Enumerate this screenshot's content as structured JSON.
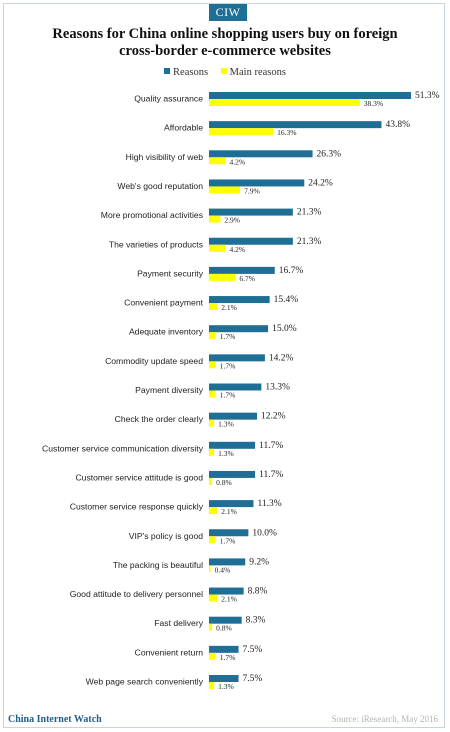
{
  "badge": "CIW",
  "title_line1": "Reasons for China online shopping users buy on foreign",
  "title_line2": "cross-border e-commerce websites",
  "footer_left": "China Internet Watch",
  "footer_right": "Source: iResearch, May 2016",
  "colors": {
    "reasons": "#1f6e95",
    "main_reasons": "#ffff00"
  },
  "chart_data": {
    "type": "bar",
    "orientation": "horizontal",
    "title": "Reasons for China online shopping users buy on foreign cross-border e-commerce websites",
    "legend_position": "top-center",
    "categories": [
      "Quality assurance",
      "Affordable",
      "High visibility of web",
      "Web's good reputation",
      "More promotional activities",
      "The varieties of products",
      "Payment security",
      "Convenient payment",
      "Adequate inventory",
      "Commodity update speed",
      "Payment diversity",
      "Check the order clearly",
      "Customer service communication diversity",
      "Customer service attitude is good",
      "Customer service response quickly",
      "VIP's policy is good",
      "The packing is beautiful",
      "Good attitude to delivery personnel",
      "Fast delivery",
      "Convenient return",
      "Web page search conveniently"
    ],
    "series": [
      {
        "name": "Reasons",
        "color": "#1f6e95",
        "values": [
          51.3,
          43.8,
          26.3,
          24.2,
          21.3,
          21.3,
          16.7,
          15.4,
          15.0,
          14.2,
          13.3,
          12.2,
          11.7,
          11.7,
          11.3,
          10.0,
          9.2,
          8.8,
          8.3,
          7.5,
          7.5
        ],
        "labels": [
          "51.3%",
          "43.8%",
          "26.3%",
          "24.2%",
          "21.3%",
          "21.3%",
          "16.7%",
          "15.4%",
          "15.0%",
          "14.2%",
          "13.3%",
          "12.2%",
          "11.7%",
          "11.7%",
          "11.3%",
          "10.0%",
          "9.2%",
          "8.8%",
          "8.3%",
          "7.5%",
          "7.5%"
        ]
      },
      {
        "name": "Main reasons",
        "color": "#ffff00",
        "values": [
          38.3,
          16.3,
          4.2,
          7.9,
          2.9,
          4.2,
          6.7,
          2.1,
          1.7,
          1.7,
          1.7,
          1.3,
          1.3,
          0.8,
          2.1,
          1.7,
          0.4,
          2.1,
          0.8,
          1.7,
          1.3
        ],
        "labels": [
          "38.3%",
          "16.3%",
          "4.2%",
          "7.9%",
          "2.9%",
          "4.2%",
          "6.7%",
          "2.1%",
          "1.7%",
          "1.7%",
          "1.7%",
          "1.3%",
          "1.3%",
          "0.8%",
          "2.1%",
          "1.7%",
          "0.4%",
          "2.1%",
          "0.8%",
          "1.7%",
          "1.3%"
        ]
      }
    ],
    "xlim": [
      0,
      51.3
    ],
    "grid": false
  }
}
